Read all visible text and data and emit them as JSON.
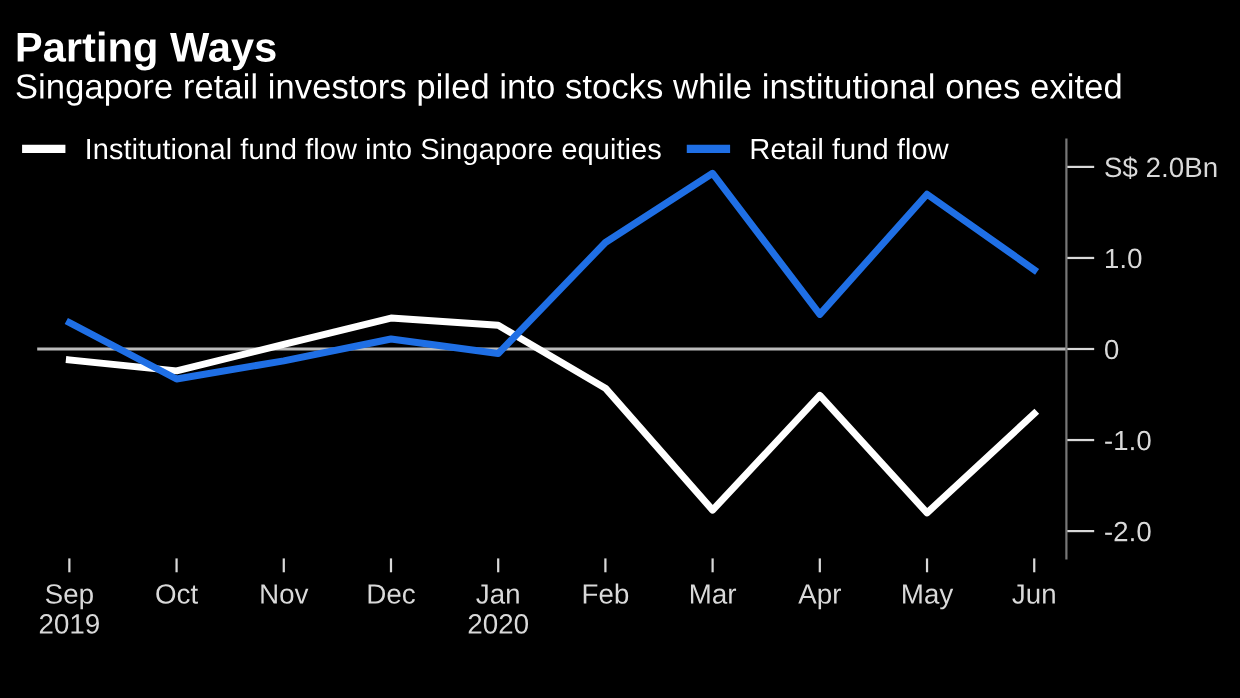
{
  "chart_data": {
    "type": "line",
    "title": "Parting Ways",
    "subtitle": "Singapore retail investors piled into stocks while institutional ones exited",
    "categories": [
      "Sep\n2019",
      "Oct",
      "Nov",
      "Dec",
      "Jan\n2020",
      "Feb",
      "Mar",
      "Apr",
      "May",
      "Jun"
    ],
    "series": [
      {
        "name": "Institutional fund flow into Singapore equities",
        "color": "#ffffff",
        "values": [
          -0.12,
          -0.24,
          0.05,
          0.34,
          0.26,
          -0.43,
          -1.77,
          -0.51,
          -1.8,
          -0.71
        ]
      },
      {
        "name": "Retail fund flow",
        "color": "#1f6fe5",
        "values": [
          0.29,
          -0.33,
          -0.13,
          0.11,
          -0.05,
          1.17,
          1.93,
          0.38,
          1.7,
          0.87
        ]
      }
    ],
    "ylim": [
      -2.3,
      2.3
    ],
    "yticks": [
      {
        "value": 2,
        "label": "S$ 2.0Bn"
      },
      {
        "value": 1,
        "label": "1.0"
      },
      0,
      {
        "value": -1,
        "label": "-1.0"
      },
      {
        "value": -2,
        "label": "-2.0"
      }
    ],
    "ref_lines": [
      {
        "axis": "y",
        "value": 0,
        "color": "#bbbbbb"
      }
    ],
    "legend": "top left",
    "grid": false,
    "marker": "none",
    "line_style": "solid"
  }
}
